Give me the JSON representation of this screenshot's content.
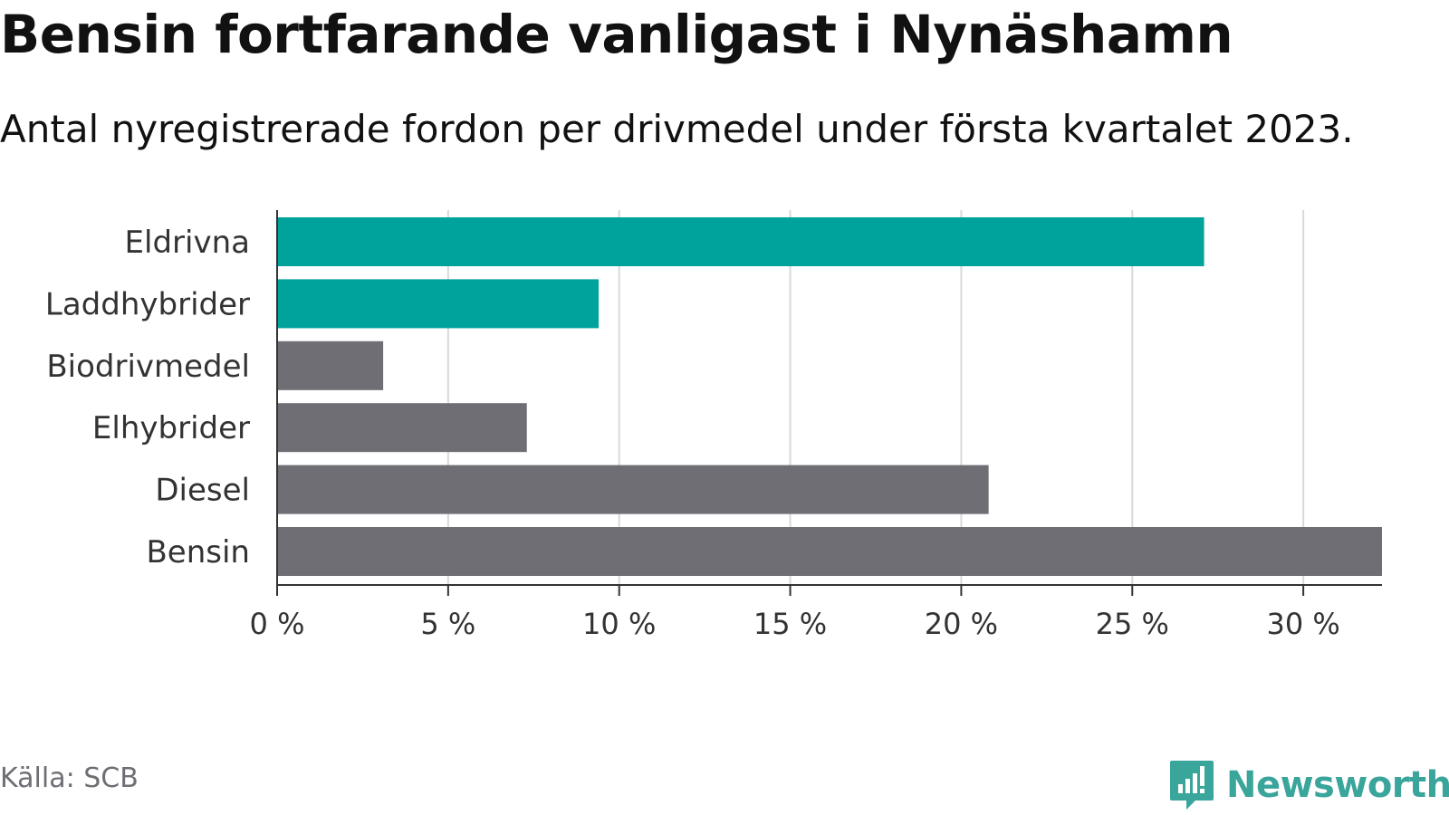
{
  "chart_data": {
    "type": "bar",
    "orientation": "horizontal",
    "title": "Bensin fortfarande vanligast i Nynäshamn",
    "subtitle": "Antal nyregistrerade fordon per drivmedel under första kvartalet 2023.",
    "categories": [
      "Eldrivna",
      "Laddhybrider",
      "Biodrivmedel",
      "Elhybrider",
      "Diesel",
      "Bensin"
    ],
    "values": [
      27.1,
      9.4,
      3.1,
      7.3,
      20.8,
      32.3
    ],
    "bar_colors": [
      "#00a39b",
      "#00a39b",
      "#6f6e74",
      "#6f6e74",
      "#6f6e74",
      "#6f6e74"
    ],
    "xlim": [
      0,
      32.3
    ],
    "xticks": [
      0,
      5,
      10,
      15,
      20,
      25,
      30
    ],
    "xtick_labels": [
      "0 %",
      "5 %",
      "10 %",
      "15 %",
      "20 %",
      "25 %",
      "30 %"
    ],
    "grid": true,
    "xlabel": "",
    "ylabel": ""
  },
  "footer": {
    "source": "Källa: SCB",
    "brand": "Newsworthy"
  },
  "colors": {
    "highlight": "#00a39b",
    "neutral": "#6f6e74",
    "grid": "#d9d9d9",
    "axis": "#333333",
    "brand": "#3aa59b"
  }
}
